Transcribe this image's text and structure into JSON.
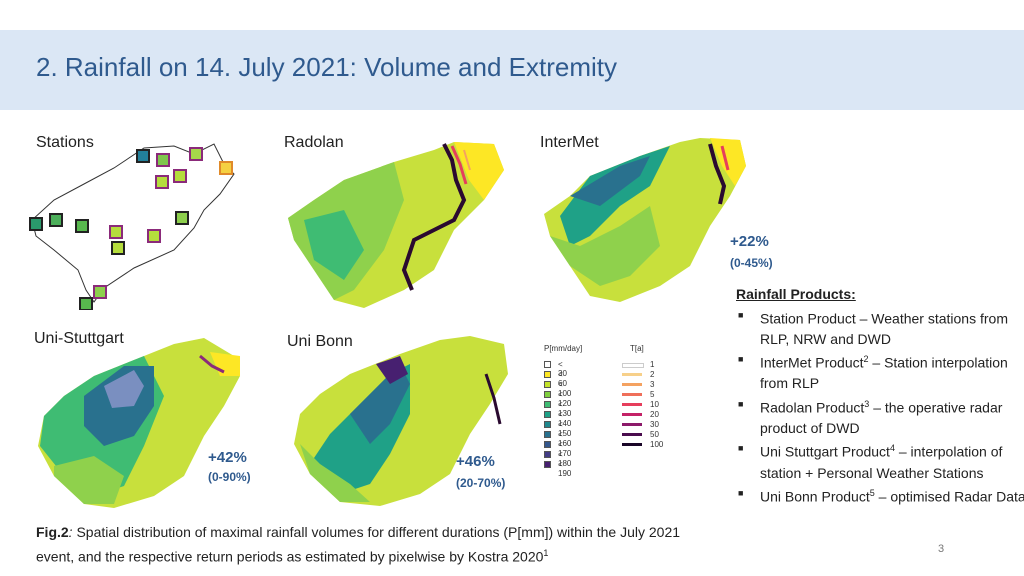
{
  "title": "2. Rainfall on 14. July 2021: Volume and Extremity",
  "maps": {
    "stations": "Stations",
    "radolan": "Radolan",
    "intermet": "InterMet",
    "uni_stuttgart": "Uni-Stuttgart",
    "uni_bonn": "Uni Bonn"
  },
  "deviations": {
    "intermet": {
      "pct": "+22%",
      "range": "(0-45%)"
    },
    "uni_stuttgart": {
      "pct": "+42%",
      "range": "(0-90%)"
    },
    "uni_bonn": {
      "pct": "+46%",
      "range": "(20-70%)"
    }
  },
  "legend": {
    "p_header": "P[mm/day]",
    "t_header": "T[a]",
    "p_classes": [
      {
        "label": "< 30",
        "color": "#ffffff"
      },
      {
        "label": "< 60",
        "color": "#fde725"
      },
      {
        "label": "< 100",
        "color": "#c3e32a"
      },
      {
        "label": "< 120",
        "color": "#7fcf3f"
      },
      {
        "label": "< 130",
        "color": "#3fbc73"
      },
      {
        "label": "< 140",
        "color": "#1fa187"
      },
      {
        "label": "< 150",
        "color": "#20888d"
      },
      {
        "label": "< 160",
        "color": "#29718e"
      },
      {
        "label": "< 170",
        "color": "#34578c"
      },
      {
        "label": "< 180",
        "color": "#433d85"
      },
      {
        "label": "< 190",
        "color": "#472070"
      }
    ],
    "t_classes": [
      {
        "label": "1",
        "color": "#ffffff"
      },
      {
        "label": "2",
        "color": "#f7d08a"
      },
      {
        "label": "3",
        "color": "#f4a261"
      },
      {
        "label": "5",
        "color": "#ef6f5a"
      },
      {
        "label": "10",
        "color": "#e63e5c"
      },
      {
        "label": "20",
        "color": "#c42267"
      },
      {
        "label": "30",
        "color": "#8c1a6a"
      },
      {
        "label": "50",
        "color": "#4a0c4e"
      },
      {
        "label": "100",
        "color": "#1a0628"
      }
    ]
  },
  "products": {
    "header": "Rainfall Products:",
    "items": [
      {
        "name": "Station Product",
        "sup": "",
        "rest": " – Weather stations from RLP, NRW and DWD"
      },
      {
        "name": "InterMet Product",
        "sup": "2",
        "rest": " – Station interpolation from RLP"
      },
      {
        "name": "Radolan Product",
        "sup": "3",
        "rest": " – the operative radar product of DWD"
      },
      {
        "name": "Uni Stuttgart Product",
        "sup": "4",
        "rest": " – interpolation of station + Personal Weather Stations"
      },
      {
        "name": "Uni Bonn Product",
        "sup": "5",
        "rest": " – optimised Radar Data"
      }
    ]
  },
  "caption": {
    "fig": "Fig.2",
    "colon": ":",
    "text": " Spatial distribution of maximal rainfall volumes for different durations (P[mm]) within the July 2021 event, and the respective return periods as estimated by pixelwise by Kostra 2020",
    "sup": "1"
  },
  "page_number": "3"
}
